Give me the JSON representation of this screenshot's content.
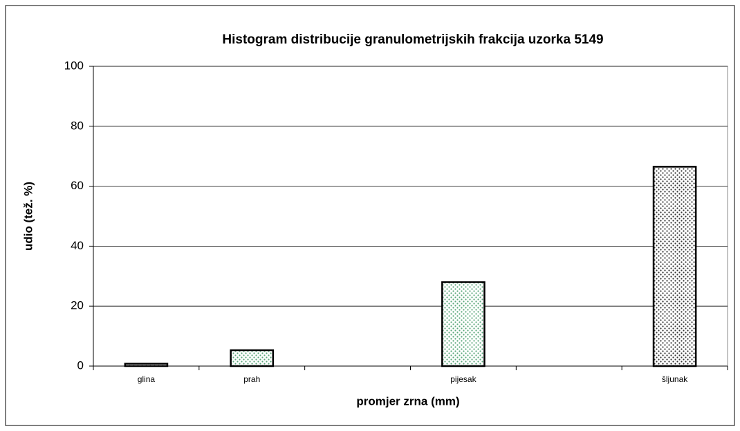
{
  "chart_data": {
    "type": "bar",
    "title": "Histogram distribucije granulometrijskih frakcija uzorka 5149",
    "x_label": "promjer zrna (mm)",
    "y_label": "udio (tež. %)",
    "categories": [
      "glina",
      "prah",
      null,
      "pijesak",
      null,
      "šljunak"
    ],
    "values": [
      0.8,
      5.3,
      null,
      28,
      null,
      66.5
    ],
    "colors": [
      "#222222",
      "#5aa77a",
      null,
      "#5aa77a",
      null,
      "#333333"
    ],
    "ylim": [
      0,
      100
    ],
    "yticks": [
      0,
      20,
      40,
      60,
      80,
      100
    ],
    "grid": true
  }
}
